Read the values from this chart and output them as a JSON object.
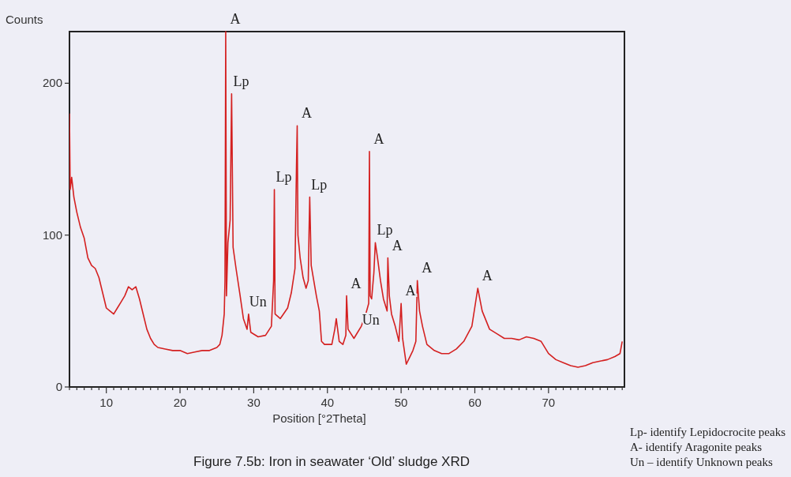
{
  "chart_data": {
    "type": "line",
    "title": "Figure 7.5b: Iron in seawater ‘Old’ sludge XRD",
    "xlabel": "Position [°2Theta]",
    "ylabel": "Counts",
    "xlim": [
      5,
      80.3
    ],
    "ylim": [
      0,
      234
    ],
    "xticks": [
      {
        "value": 5,
        "label": null
      },
      {
        "value": 6,
        "label": null
      },
      {
        "value": 7,
        "label": null
      },
      {
        "value": 8,
        "label": null
      },
      {
        "value": 9,
        "label": null
      },
      10,
      {
        "value": 11,
        "label": null
      },
      {
        "value": 12,
        "label": null
      },
      {
        "value": 13,
        "label": null
      },
      {
        "value": 14,
        "label": null
      },
      {
        "value": 15,
        "label": null
      },
      {
        "value": 16,
        "label": null
      },
      {
        "value": 17,
        "label": null
      },
      {
        "value": 18,
        "label": null
      },
      {
        "value": 19,
        "label": null
      },
      20,
      {
        "value": 21,
        "label": null
      },
      {
        "value": 22,
        "label": null
      },
      {
        "value": 23,
        "label": null
      },
      {
        "value": 24,
        "label": null
      },
      {
        "value": 25,
        "label": null
      },
      {
        "value": 26,
        "label": null
      },
      {
        "value": 27,
        "label": null
      },
      {
        "value": 28,
        "label": null
      },
      {
        "value": 29,
        "label": null
      },
      30,
      {
        "value": 31,
        "label": null
      },
      {
        "value": 32,
        "label": null
      },
      {
        "value": 33,
        "label": null
      },
      {
        "value": 34,
        "label": null
      },
      {
        "value": 35,
        "label": null
      },
      {
        "value": 36,
        "label": null
      },
      {
        "value": 37,
        "label": null
      },
      {
        "value": 38,
        "label": null
      },
      {
        "value": 39,
        "label": null
      },
      40,
      {
        "value": 41,
        "label": null
      },
      {
        "value": 42,
        "label": null
      },
      {
        "value": 43,
        "label": null
      },
      {
        "value": 44,
        "label": null
      },
      {
        "value": 45,
        "label": null
      },
      {
        "value": 46,
        "label": null
      },
      {
        "value": 47,
        "label": null
      },
      {
        "value": 48,
        "label": null
      },
      {
        "value": 49,
        "label": null
      },
      50,
      {
        "value": 51,
        "label": null
      },
      {
        "value": 52,
        "label": null
      },
      {
        "value": 53,
        "label": null
      },
      {
        "value": 54,
        "label": null
      },
      {
        "value": 55,
        "label": null
      },
      {
        "value": 56,
        "label": null
      },
      {
        "value": 57,
        "label": null
      },
      {
        "value": 58,
        "label": null
      },
      {
        "value": 59,
        "label": null
      },
      60,
      {
        "value": 61,
        "label": null
      },
      {
        "value": 62,
        "label": null
      },
      {
        "value": 63,
        "label": null
      },
      {
        "value": 64,
        "label": null
      },
      {
        "value": 65,
        "label": null
      },
      {
        "value": 66,
        "label": null
      },
      {
        "value": 67,
        "label": null
      },
      {
        "value": 68,
        "label": null
      },
      {
        "value": 69,
        "label": null
      },
      70,
      {
        "value": 71,
        "label": null
      },
      {
        "value": 72,
        "label": null
      },
      {
        "value": 73,
        "label": null
      },
      {
        "value": 74,
        "label": null
      },
      {
        "value": 75,
        "label": null
      },
      {
        "value": 76,
        "label": null
      },
      {
        "value": 77,
        "label": null
      },
      {
        "value": 78,
        "label": null
      },
      {
        "value": 79,
        "label": null
      },
      {
        "value": 80,
        "label": null
      }
    ],
    "yticks": [
      0,
      100,
      200
    ],
    "marker": "none",
    "line_style": "solid",
    "series": [
      {
        "color": "#d42020",
        "x": [
          5,
          5.1,
          5.3,
          5.6,
          6,
          6.5,
          7,
          7.5,
          8,
          8.5,
          9,
          9.5,
          10,
          10.5,
          11,
          11.5,
          12,
          12.5,
          13,
          13.5,
          14,
          14.5,
          15,
          15.5,
          16,
          16.5,
          17,
          18,
          19,
          20,
          21,
          22,
          23,
          24,
          25,
          25.4,
          25.7,
          26,
          26.1,
          26.2,
          26.3,
          26.5,
          26.8,
          27.0,
          27.2,
          27.6,
          28.1,
          28.6,
          29.1,
          29.3,
          29.6,
          30.6,
          31.6,
          32.4,
          32.7,
          32.8,
          32.9,
          33.6,
          34.6,
          35.1,
          35.6,
          35.8,
          35.9,
          36.0,
          36.3,
          36.7,
          37.1,
          37.4,
          37.5,
          37.6,
          37.8,
          38.5,
          38.9,
          39.2,
          39.6,
          40.6,
          41.0,
          41.2,
          41.6,
          42.1,
          42.5,
          42.6,
          42.8,
          43.6,
          44.1,
          44.6,
          45.2,
          45.6,
          45.7,
          45.8,
          46.0,
          46.3,
          46.5,
          46.8,
          47.2,
          47.6,
          48.1,
          48.2,
          48.4,
          48.7,
          49.2,
          49.7,
          50.0,
          50.2,
          50.7,
          51.2,
          51.6,
          52.0,
          52.2,
          52.5,
          52.9,
          53.5,
          54.5,
          55.5,
          56.5,
          57.5,
          58.5,
          59.6,
          60.4,
          61,
          62,
          63,
          64,
          65,
          66,
          67,
          68,
          69,
          70,
          71,
          72,
          73,
          74,
          75,
          76,
          77,
          78,
          79,
          79.7,
          80
        ],
        "values": [
          180,
          130,
          138,
          125,
          115,
          105,
          98,
          85,
          80,
          78,
          72,
          62,
          52,
          50,
          48,
          52,
          56,
          60,
          66,
          64,
          66,
          58,
          48,
          38,
          32,
          28,
          26,
          25,
          24,
          24,
          22,
          23,
          24,
          24,
          26,
          28,
          34,
          48,
          70,
          234,
          60,
          95,
          110,
          193,
          92,
          78,
          62,
          45,
          38,
          48,
          36,
          33,
          34,
          40,
          70,
          130,
          48,
          45,
          52,
          62,
          78,
          145,
          172,
          100,
          85,
          72,
          65,
          70,
          100,
          125,
          80,
          60,
          50,
          30,
          28,
          28,
          38,
          45,
          30,
          28,
          34,
          60,
          38,
          32,
          36,
          40,
          48,
          55,
          155,
          60,
          58,
          75,
          95,
          85,
          70,
          58,
          50,
          85,
          60,
          48,
          40,
          30,
          55,
          32,
          15,
          20,
          24,
          30,
          70,
          50,
          40,
          28,
          24,
          22,
          22,
          25,
          30,
          40,
          65,
          50,
          38,
          35,
          32,
          32,
          31,
          33,
          32,
          30,
          22,
          18,
          16,
          14,
          13,
          14,
          16,
          17,
          18,
          20,
          22,
          30
        ]
      }
    ],
    "annotations": [
      {
        "text": "A",
        "x": 26.2,
        "y": 234
      },
      {
        "text": "Lp",
        "x": 27.0,
        "y": 193
      },
      {
        "text": "A",
        "x": 35.9,
        "y": 172
      },
      {
        "text": "Lp",
        "x": 32.8,
        "y": 130
      },
      {
        "text": "Lp",
        "x": 37.6,
        "y": 125
      },
      {
        "text": "Un",
        "x": 29.3,
        "y": 48
      },
      {
        "text": "A",
        "x": 45.7,
        "y": 155
      },
      {
        "text": "Lp",
        "x": 46.5,
        "y": 95
      },
      {
        "text": "Un",
        "x": 44.6,
        "y": 36
      },
      {
        "text": "A",
        "x": 48.2,
        "y": 85
      },
      {
        "text": "A",
        "x": 42.6,
        "y": 60
      },
      {
        "text": "A",
        "x": 50.0,
        "y": 55
      },
      {
        "text": "A",
        "x": 52.2,
        "y": 70
      },
      {
        "text": "A",
        "x": 60.4,
        "y": 65
      },
      "Lp- identify Lepidocrocite peaks",
      "A- identify Aragonite peaks",
      "Un – identify Unknown peaks"
    ]
  }
}
